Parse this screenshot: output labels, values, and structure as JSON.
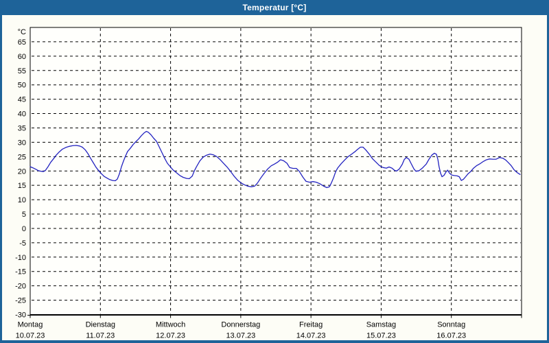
{
  "window": {
    "title": "Temperatur [°C]",
    "accent_color": "#1e6399",
    "content_background": "#fdfdf6"
  },
  "chart_data": {
    "type": "line",
    "title": "Temperatur [°C]",
    "unit_label": "°C",
    "grid": "dashed",
    "plot_background": "#fffffc",
    "grid_color": "#000000",
    "y_axis": {
      "min": -30,
      "max": 70,
      "tick_step": 5,
      "tick_labels": [
        65,
        60,
        55,
        50,
        45,
        40,
        35,
        30,
        25,
        20,
        15,
        10,
        5,
        0,
        -5,
        -10,
        -15,
        -20,
        -25,
        -30
      ]
    },
    "x_axis": {
      "total_hours": 168,
      "days": [
        {
          "label": "Montag",
          "date": "10.07.23"
        },
        {
          "label": "Dienstag",
          "date": "11.07.23"
        },
        {
          "label": "Mittwoch",
          "date": "12.07.23"
        },
        {
          "label": "Donnerstag",
          "date": "13.07.23"
        },
        {
          "label": "Freitag",
          "date": "14.07.23"
        },
        {
          "label": "Samstag",
          "date": "15.07.23"
        },
        {
          "label": "Sonntag",
          "date": "16.07.23"
        }
      ]
    },
    "series": [
      {
        "name": "Temperatur",
        "color": "#2222c0",
        "points": [
          [
            0.0,
            21.5
          ],
          [
            0.9,
            21.1
          ],
          [
            1.9,
            20.6
          ],
          [
            2.8,
            20.1
          ],
          [
            3.8,
            19.9
          ],
          [
            4.5,
            19.8
          ],
          [
            5.2,
            20.2
          ],
          [
            6.1,
            21.5
          ],
          [
            7.0,
            23.0
          ],
          [
            8.0,
            24.3
          ],
          [
            8.9,
            25.5
          ],
          [
            9.9,
            26.6
          ],
          [
            11.0,
            27.6
          ],
          [
            12.2,
            28.2
          ],
          [
            13.4,
            28.6
          ],
          [
            14.5,
            28.8
          ],
          [
            15.7,
            28.9
          ],
          [
            16.9,
            28.7
          ],
          [
            17.8,
            28.3
          ],
          [
            18.8,
            27.4
          ],
          [
            19.7,
            26.1
          ],
          [
            20.6,
            24.5
          ],
          [
            21.6,
            22.8
          ],
          [
            22.5,
            21.3
          ],
          [
            23.5,
            20.0
          ],
          [
            24.4,
            19.0
          ],
          [
            25.3,
            18.1
          ],
          [
            26.3,
            17.5
          ],
          [
            27.2,
            17.0
          ],
          [
            28.2,
            16.7
          ],
          [
            29.1,
            16.6
          ],
          [
            29.8,
            17.2
          ],
          [
            30.5,
            19.0
          ],
          [
            31.2,
            21.5
          ],
          [
            31.9,
            23.5
          ],
          [
            32.6,
            25.2
          ],
          [
            33.3,
            26.8
          ],
          [
            34.3,
            28.0
          ],
          [
            35.2,
            29.2
          ],
          [
            36.1,
            30.2
          ],
          [
            37.1,
            31.2
          ],
          [
            38.0,
            32.3
          ],
          [
            39.0,
            33.3
          ],
          [
            39.7,
            33.8
          ],
          [
            40.4,
            33.5
          ],
          [
            41.3,
            32.6
          ],
          [
            42.2,
            31.4
          ],
          [
            43.2,
            30.3
          ],
          [
            44.1,
            28.4
          ],
          [
            45.1,
            26.3
          ],
          [
            46.0,
            24.4
          ],
          [
            46.9,
            22.7
          ],
          [
            47.9,
            21.5
          ],
          [
            48.8,
            20.4
          ],
          [
            50.0,
            19.4
          ],
          [
            51.2,
            18.4
          ],
          [
            52.3,
            17.8
          ],
          [
            53.5,
            17.4
          ],
          [
            54.4,
            17.3
          ],
          [
            55.4,
            18.2
          ],
          [
            56.1,
            20.0
          ],
          [
            56.8,
            21.4
          ],
          [
            58.0,
            23.5
          ],
          [
            59.1,
            24.8
          ],
          [
            60.3,
            25.5
          ],
          [
            61.5,
            25.9
          ],
          [
            62.7,
            25.6
          ],
          [
            63.8,
            25.0
          ],
          [
            65.0,
            23.9
          ],
          [
            66.2,
            22.6
          ],
          [
            67.3,
            21.4
          ],
          [
            68.5,
            19.9
          ],
          [
            69.7,
            18.2
          ],
          [
            70.9,
            16.8
          ],
          [
            72.0,
            15.9
          ],
          [
            73.2,
            15.2
          ],
          [
            74.4,
            14.7
          ],
          [
            75.6,
            14.5
          ],
          [
            76.7,
            14.7
          ],
          [
            77.7,
            15.8
          ],
          [
            78.8,
            17.5
          ],
          [
            80.0,
            19.2
          ],
          [
            81.2,
            20.7
          ],
          [
            82.4,
            21.8
          ],
          [
            83.5,
            22.4
          ],
          [
            84.5,
            23.0
          ],
          [
            85.6,
            23.9
          ],
          [
            86.6,
            23.6
          ],
          [
            87.8,
            22.7
          ],
          [
            88.7,
            21.2
          ],
          [
            89.9,
            20.9
          ],
          [
            91.0,
            20.9
          ],
          [
            92.0,
            19.9
          ],
          [
            93.2,
            17.9
          ],
          [
            94.3,
            16.4
          ],
          [
            95.5,
            16.1
          ],
          [
            96.7,
            16.3
          ],
          [
            97.8,
            16.1
          ],
          [
            99.0,
            15.6
          ],
          [
            100.2,
            14.8
          ],
          [
            101.4,
            14.2
          ],
          [
            102.3,
            14.5
          ],
          [
            103.0,
            15.9
          ],
          [
            103.7,
            17.6
          ],
          [
            104.4,
            19.6
          ],
          [
            105.1,
            21.0
          ],
          [
            106.3,
            22.5
          ],
          [
            107.5,
            23.8
          ],
          [
            108.6,
            24.9
          ],
          [
            109.8,
            25.8
          ],
          [
            111.0,
            26.7
          ],
          [
            111.9,
            27.5
          ],
          [
            112.9,
            28.3
          ],
          [
            113.8,
            28.3
          ],
          [
            114.7,
            27.4
          ],
          [
            115.9,
            25.9
          ],
          [
            117.1,
            24.2
          ],
          [
            118.3,
            23.0
          ],
          [
            119.4,
            21.9
          ],
          [
            120.6,
            21.2
          ],
          [
            121.8,
            21.0
          ],
          [
            122.7,
            21.4
          ],
          [
            123.7,
            21.0
          ],
          [
            124.6,
            20.2
          ],
          [
            125.3,
            20.0
          ],
          [
            126.2,
            20.7
          ],
          [
            127.2,
            22.3
          ],
          [
            127.9,
            24.0
          ],
          [
            128.6,
            24.7
          ],
          [
            129.5,
            24.1
          ],
          [
            130.2,
            22.7
          ],
          [
            131.2,
            20.7
          ],
          [
            131.9,
            19.9
          ],
          [
            133.0,
            20.1
          ],
          [
            134.2,
            21.1
          ],
          [
            135.4,
            22.4
          ],
          [
            136.3,
            24.0
          ],
          [
            137.3,
            25.5
          ],
          [
            138.2,
            26.2
          ],
          [
            138.9,
            25.8
          ],
          [
            139.4,
            24.0
          ],
          [
            139.8,
            21.5
          ],
          [
            140.3,
            19.3
          ],
          [
            140.8,
            18.0
          ],
          [
            141.5,
            18.5
          ],
          [
            142.2,
            19.7
          ],
          [
            142.7,
            20.3
          ],
          [
            143.4,
            19.2
          ],
          [
            144.1,
            18.6
          ],
          [
            145.0,
            18.4
          ],
          [
            146.0,
            18.3
          ],
          [
            146.7,
            18.0
          ],
          [
            147.4,
            16.7
          ],
          [
            148.1,
            17.1
          ],
          [
            148.8,
            17.9
          ],
          [
            149.7,
            19.0
          ],
          [
            150.6,
            19.8
          ],
          [
            151.6,
            21.0
          ],
          [
            152.7,
            21.9
          ],
          [
            153.9,
            22.6
          ],
          [
            154.9,
            23.3
          ],
          [
            155.8,
            23.8
          ],
          [
            157.0,
            24.2
          ],
          [
            158.2,
            24.1
          ],
          [
            159.3,
            24.1
          ],
          [
            160.5,
            24.7
          ],
          [
            161.7,
            24.4
          ],
          [
            162.6,
            23.8
          ],
          [
            163.5,
            22.9
          ],
          [
            164.5,
            21.8
          ],
          [
            165.4,
            20.5
          ],
          [
            166.4,
            19.5
          ],
          [
            167.5,
            18.8
          ]
        ]
      }
    ]
  }
}
